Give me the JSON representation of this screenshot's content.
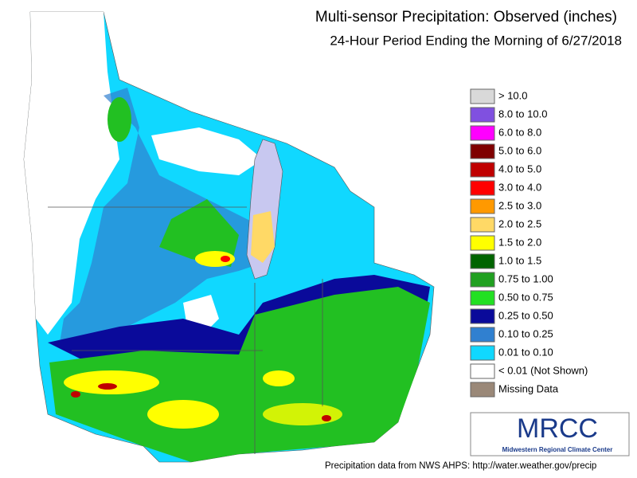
{
  "header": {
    "title": "Multi-sensor Precipitation: Observed (inches)",
    "subtitle": "24-Hour Period Ending the Morning of 6/27/2018"
  },
  "legend": {
    "items": [
      {
        "label": "> 10.0",
        "color": "#d9d9d9"
      },
      {
        "label": "8.0 to 10.0",
        "color": "#8050e0"
      },
      {
        "label": "6.0 to 8.0",
        "color": "#ff00ff"
      },
      {
        "label": "5.0 to 6.0",
        "color": "#7f0000"
      },
      {
        "label": "4.0 to 5.0",
        "color": "#c00000"
      },
      {
        "label": "3.0 to 4.0",
        "color": "#ff0000"
      },
      {
        "label": "2.5 to 3.0",
        "color": "#ff9900"
      },
      {
        "label": "2.0 to 2.5",
        "color": "#ffd966"
      },
      {
        "label": "1.5 to 2.0",
        "color": "#ffff00"
      },
      {
        "label": "1.0 to 1.5",
        "color": "#006400"
      },
      {
        "label": "0.75 to 1.00",
        "color": "#20a020"
      },
      {
        "label": "0.50 to 0.75",
        "color": "#22e022"
      },
      {
        "label": "0.25 to 0.50",
        "color": "#0a0a9a"
      },
      {
        "label": "0.10 to 0.25",
        "color": "#3080d0"
      },
      {
        "label": "0.01 to 0.10",
        "color": "#10d8ff"
      },
      {
        "label": "< 0.01 (Not Shown)",
        "color": "#ffffff"
      },
      {
        "label": "Missing Data",
        "color": "#9a8878"
      }
    ]
  },
  "logo": {
    "name": "MRCC",
    "full_name": "Midwestern Regional Climate Center"
  },
  "footer": "Precipitation data from NWS AHPS: http://water.weather.gov/precip"
}
